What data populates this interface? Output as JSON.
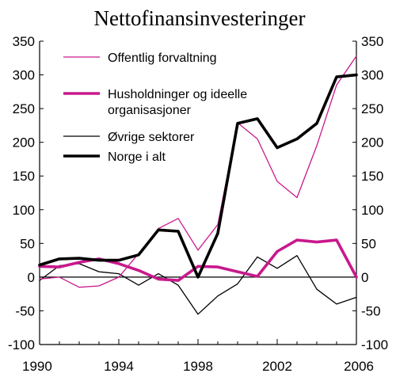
{
  "chart_data": {
    "type": "line",
    "title": "Nettofinansinvesteringer",
    "xlabel": "",
    "ylabel": "",
    "x": [
      1990,
      1991,
      1992,
      1993,
      1994,
      1995,
      1996,
      1997,
      1998,
      1999,
      2000,
      2001,
      2002,
      2003,
      2004,
      2005,
      2006
    ],
    "xlim": [
      1990,
      2006
    ],
    "ylim": [
      -100,
      350
    ],
    "x_ticks": [
      1990,
      1994,
      1998,
      2002,
      2006
    ],
    "x_tick_labels": [
      "1990",
      "1994",
      "1998",
      "2002",
      "2006"
    ],
    "y_ticks": [
      -100,
      -50,
      0,
      50,
      100,
      150,
      200,
      250,
      300,
      350
    ],
    "y_tick_labels": [
      "-100",
      "-50",
      "0",
      "50",
      "100",
      "150",
      "200",
      "250",
      "300",
      "350"
    ],
    "y_axis_both_sides": true,
    "grid": false,
    "legend_position": "top-left",
    "series": [
      {
        "name": "Offentlig forvaltning",
        "color": "#c8198c",
        "width": "thin",
        "values": [
          -3,
          0,
          -15,
          -13,
          0,
          35,
          72,
          87,
          40,
          78,
          229,
          205,
          142,
          118,
          195,
          285,
          328
        ]
      },
      {
        "name": "Husholdninger og ideelle organisasjoner",
        "legend_lines": [
          "Husholdninger og ideelle",
          "organisasjoner"
        ],
        "color": "#c8198c",
        "width": "thick",
        "values": [
          16,
          15,
          22,
          27,
          20,
          10,
          -3,
          -5,
          16,
          15,
          8,
          1,
          38,
          55,
          52,
          55,
          0
        ]
      },
      {
        "name": "Øvrige sektorer",
        "color": "#000000",
        "width": "thin",
        "values": [
          -5,
          17,
          20,
          8,
          5,
          -12,
          5,
          -12,
          -55,
          -28,
          -10,
          30,
          13,
          32,
          -18,
          -40,
          -30
        ]
      },
      {
        "name": "Norge i alt",
        "color": "#000000",
        "width": "thick",
        "values": [
          18,
          27,
          28,
          25,
          25,
          33,
          70,
          68,
          0,
          65,
          228,
          235,
          192,
          205,
          228,
          297,
          300
        ]
      }
    ]
  }
}
